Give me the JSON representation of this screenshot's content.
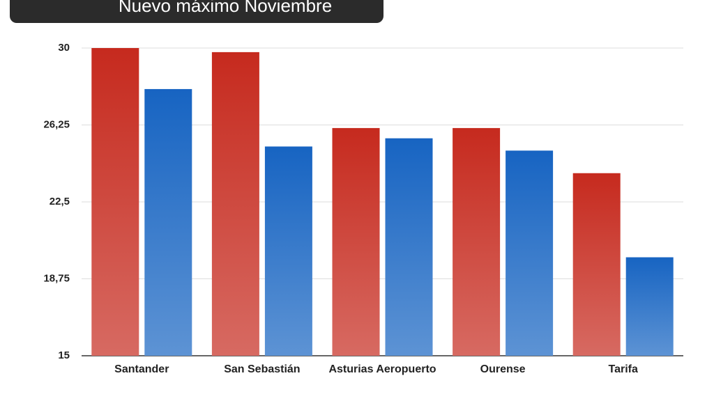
{
  "chart_data": {
    "type": "bar",
    "title": "Nuevo máximo Noviembre",
    "categories": [
      "Santander",
      "San Sebastián",
      "Asturias Aeropuerto",
      "Ourense",
      "Tarifa"
    ],
    "series": [
      {
        "color": "#c62a1e",
        "values": [
          30,
          29.8,
          26.1,
          26.1,
          23.9
        ]
      },
      {
        "color": "#1764c2",
        "values": [
          28.0,
          25.2,
          25.6,
          25.0,
          19.8
        ]
      }
    ],
    "ylim": [
      15,
      30
    ],
    "yticks": [
      15,
      {
        "value": 18.75,
        "label": "18,75"
      },
      {
        "value": 22.5,
        "label": "22,5"
      },
      {
        "value": 26.25,
        "label": "26,25"
      },
      30
    ],
    "grid": true
  }
}
